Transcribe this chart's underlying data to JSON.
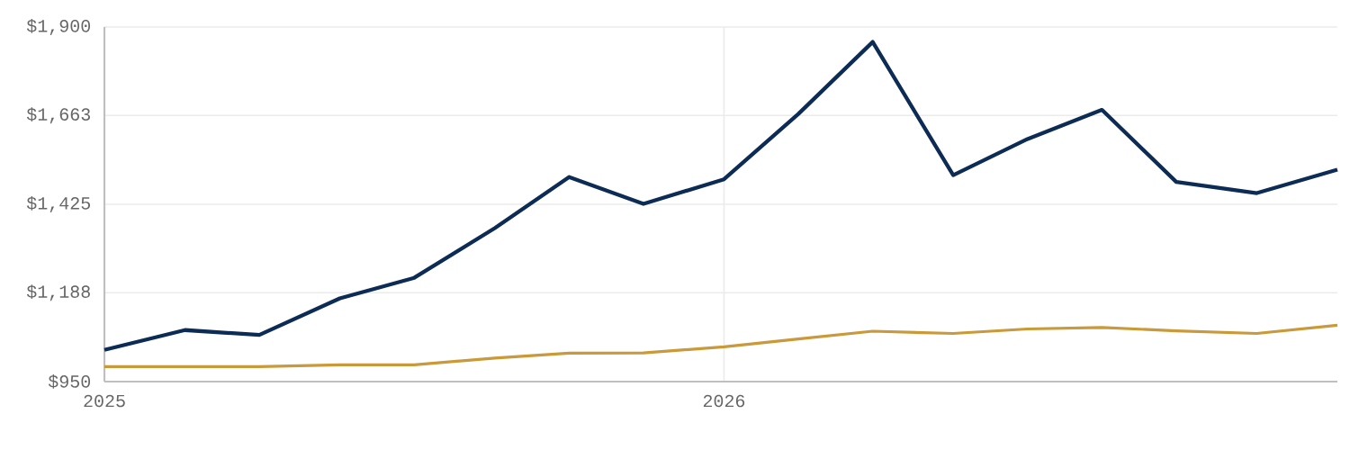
{
  "chart_data": {
    "type": "line",
    "x": [
      2025,
      2025.13,
      2025.25,
      2025.38,
      2025.5,
      2025.63,
      2025.75,
      2025.87,
      2026,
      2026.12,
      2026.24,
      2026.37,
      2026.49,
      2026.61,
      2026.73,
      2026.86,
      2026.99
    ],
    "series": [
      {
        "color": "#0c2b55",
        "values": [
          1035,
          1088,
          1075,
          1173,
          1228,
          1361,
          1498,
          1426,
          1492,
          1667,
          1860,
          1503,
          1600,
          1678,
          1485,
          1455,
          1518
        ]
      },
      {
        "color": "#c9993a",
        "values": [
          990,
          990,
          990,
          995,
          995,
          1013,
          1026,
          1027,
          1043,
          1064,
          1085,
          1079,
          1091,
          1095,
          1086,
          1079,
          1101
        ]
      }
    ],
    "xlim": [
      2025,
      2026.99
    ],
    "xticks": [
      {
        "value": 2025,
        "label": "2025"
      },
      {
        "value": 2026,
        "label": "2026"
      }
    ],
    "ylim": [
      950,
      1900
    ],
    "yticks": [
      {
        "value": 950,
        "label": "$950"
      },
      {
        "value": 1188,
        "label": "$1,188"
      },
      {
        "value": 1425,
        "label": "$1,425"
      },
      {
        "value": 1663,
        "label": "$1,663"
      },
      {
        "value": 1900,
        "label": "$1,900"
      }
    ],
    "grid": true,
    "marker": "none",
    "line_style": "solid"
  }
}
